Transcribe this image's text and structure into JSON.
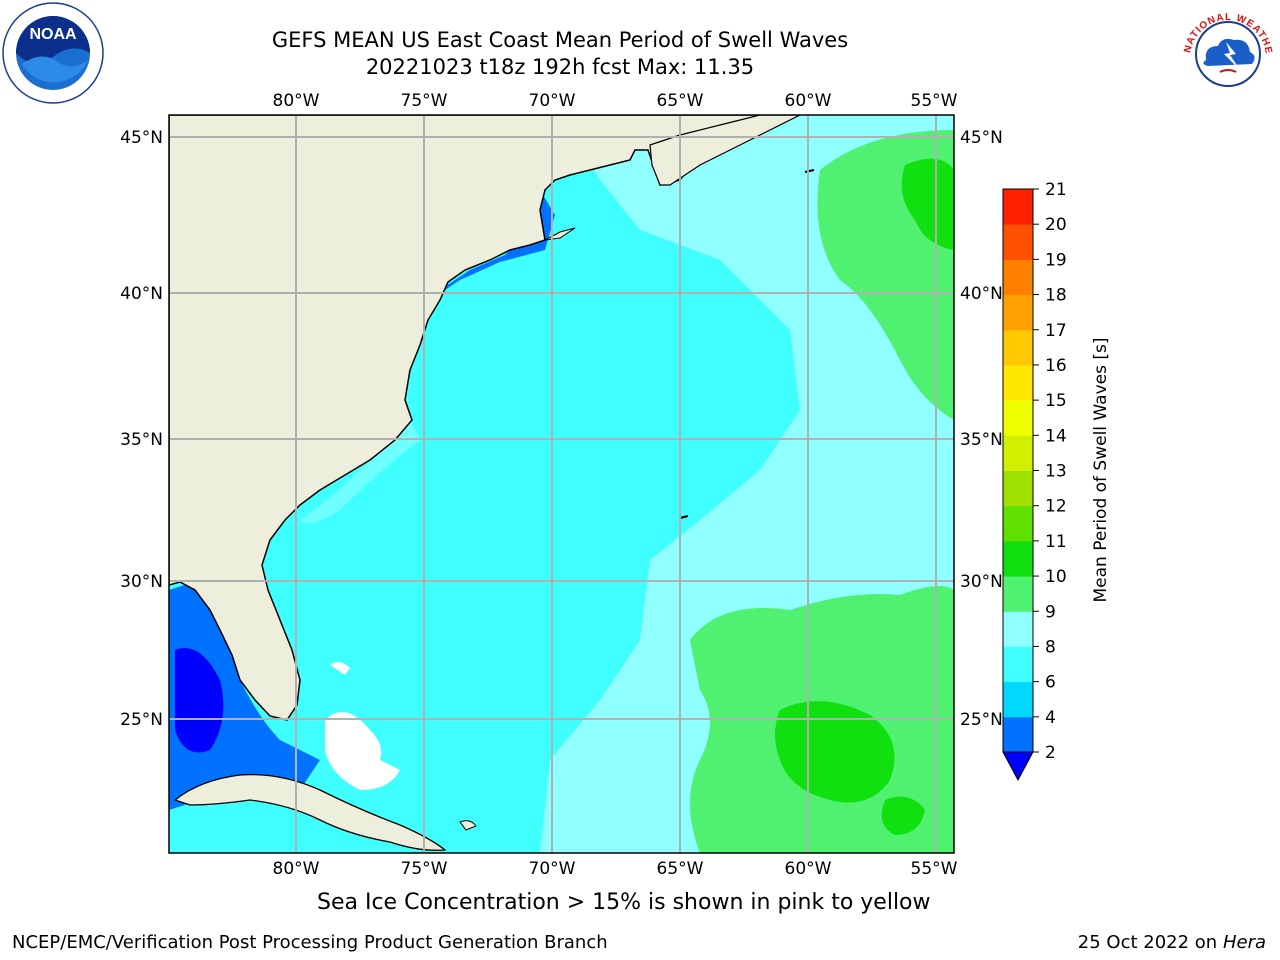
{
  "title_line1": "GEFS MEAN US East Coast Mean Period of Swell Waves",
  "title_line2": "20221023 t18z 192h fcst   Max: 11.35",
  "map": {
    "lon_ticks": [
      "80°W",
      "75°W",
      "70°W",
      "65°W",
      "60°W",
      "55°W"
    ],
    "lat_ticks": [
      "45°N",
      "40°N",
      "35°N",
      "30°N",
      "25°N"
    ],
    "lon_range": [
      -85,
      -54.5
    ],
    "lat_range": [
      20.5,
      45.7
    ],
    "colors": {
      "land": "#eeeedd",
      "ocean_main": "#40ffff",
      "grid": "#b0b0b0"
    },
    "regions": [
      "Atlantic Ocean",
      "US East Coast",
      "Gulf of Mexico",
      "Bahamas",
      "Cuba",
      "Nova Scotia"
    ]
  },
  "colorbar": {
    "label": "Mean Period of Swell Waves [s]",
    "ticks": [
      "2",
      "4",
      "6",
      "8",
      "9",
      "10",
      "11",
      "12",
      "13",
      "14",
      "15",
      "16",
      "17",
      "18",
      "19",
      "20",
      "21"
    ],
    "colors": [
      "#0072ff",
      "#00d8ff",
      "#40ffff",
      "#90ffff",
      "#50f070",
      "#10e010",
      "#60e000",
      "#a0e000",
      "#d0f000",
      "#f0ff00",
      "#ffe800",
      "#ffc800",
      "#ffa000",
      "#ff8000",
      "#ff5000",
      "#ff2000",
      "#ff0000"
    ],
    "extend_low_color": "#0000ff"
  },
  "ice_note": "Sea Ice Concentration > 15% is shown in pink to yellow",
  "footer_left": "NCEP/EMC/Verification Post Processing Product Generation Branch",
  "footer_right_date": "25 Oct 2022 on ",
  "footer_right_host": "Hera",
  "logos": {
    "noaa": "noaa-logo",
    "noaa_text": "NOAA",
    "nws": "nws-logo",
    "nws_text": "NATIONAL WEATHER SERVICE"
  }
}
